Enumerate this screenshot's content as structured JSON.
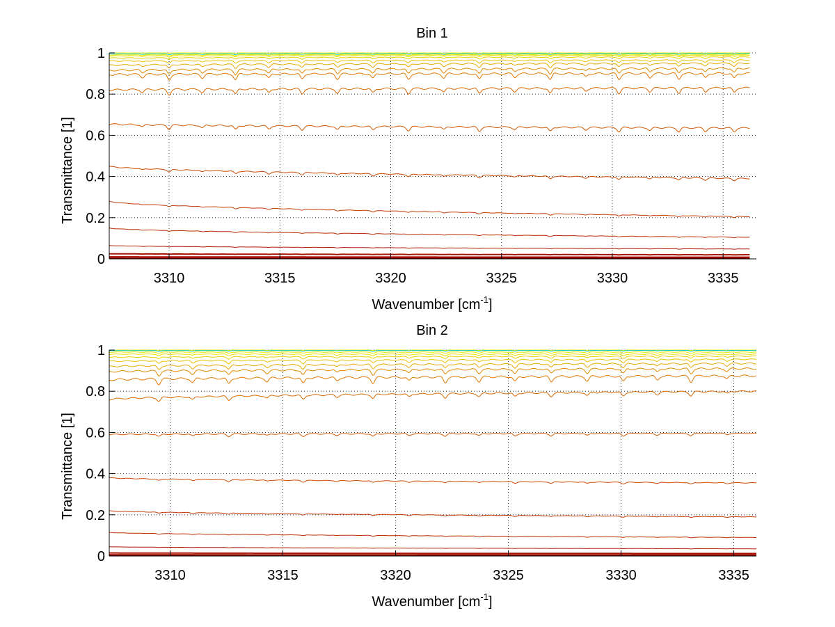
{
  "chart_data": [
    {
      "type": "line",
      "title": "Bin 1",
      "xlabel": "Wavenumber [cm",
      "xlabel_sup": "-1",
      "xlabel_end": "]",
      "ylabel": "Transmittance [1]",
      "xlim": [
        3307.3,
        3336.5
      ],
      "ylim": [
        0,
        1
      ],
      "data_xmax": 3336.2,
      "xticks": [
        3310,
        3315,
        3320,
        3325,
        3330,
        3335
      ],
      "xtick_labels": [
        "3310",
        "3315",
        "3320",
        "3325",
        "3330",
        "3335"
      ],
      "yticks": [
        0,
        0.2,
        0.4,
        0.6,
        0.8,
        1
      ],
      "ytick_labels": [
        "0",
        "0.2",
        "0.4",
        "0.6",
        "0.8",
        "1"
      ],
      "grid": true,
      "line_absorption": [
        3308.8,
        3310.0,
        3311.5,
        3313.0,
        3314.5,
        3316.0,
        3317.6,
        3319.2,
        3320.8,
        3322.4,
        3324.0,
        3325.6,
        3327.2,
        3328.8,
        3330.3,
        3331.7,
        3333.0,
        3334.2,
        3335.5
      ],
      "series": [
        {
          "name": "curve-1",
          "start": 1.0,
          "end": 1.0,
          "color": "#e8e800",
          "dip": 0.002
        },
        {
          "name": "curve-2",
          "start": 0.995,
          "end": 0.997,
          "color": "#00c8c8",
          "dip": 0.004
        },
        {
          "name": "curve-3",
          "start": 0.99,
          "end": 0.993,
          "color": "#e8e800",
          "dip": 0.005
        },
        {
          "name": "curve-4",
          "start": 0.985,
          "end": 0.988,
          "color": "#e8e000",
          "dip": 0.006
        },
        {
          "name": "curve-5",
          "start": 0.975,
          "end": 0.98,
          "color": "#e8d000",
          "dip": 0.008
        },
        {
          "name": "curve-6",
          "start": 0.96,
          "end": 0.965,
          "color": "#e8c000",
          "dip": 0.012
        },
        {
          "name": "curve-7",
          "start": 0.94,
          "end": 0.95,
          "color": "#e8a800",
          "dip": 0.018
        },
        {
          "name": "curve-8",
          "start": 0.915,
          "end": 0.925,
          "color": "#e08800",
          "dip": 0.024
        },
        {
          "name": "curve-9",
          "start": 0.895,
          "end": 0.9,
          "color": "#e07800",
          "dip": 0.028
        },
        {
          "name": "curve-10",
          "start": 0.82,
          "end": 0.83,
          "color": "#d86800",
          "dip": 0.025
        },
        {
          "name": "curve-11",
          "start": 0.655,
          "end": 0.635,
          "color": "#d05800",
          "dip": 0.02
        },
        {
          "name": "curve-12",
          "start": 0.45,
          "end": 0.39,
          "color": "#c84800",
          "dip": 0.012
        },
        {
          "name": "curve-13",
          "start": 0.28,
          "end": 0.205,
          "color": "#c03800",
          "dip": 0.006
        },
        {
          "name": "curve-14",
          "start": 0.15,
          "end": 0.105,
          "color": "#b82800",
          "dip": 0.004
        },
        {
          "name": "curve-15",
          "start": 0.065,
          "end": 0.048,
          "color": "#b01800",
          "dip": 0.002
        },
        {
          "name": "curve-16",
          "start": 0.025,
          "end": 0.02,
          "color": "#a81000",
          "dip": 0.001
        },
        {
          "name": "curve-17",
          "start": 0.01,
          "end": 0.008,
          "color": "#a00800",
          "dip": 0.0
        },
        {
          "name": "curve-18",
          "start": 0.003,
          "end": 0.002,
          "color": "#980000",
          "dip": 0.0
        }
      ]
    },
    {
      "type": "line",
      "title": "Bin 2",
      "xlabel": "Wavenumber [cm",
      "xlabel_sup": "-1",
      "xlabel_end": "]",
      "ylabel": "Transmittance [1]",
      "xlim": [
        3307.3,
        3336.0
      ],
      "ylim": [
        0,
        1
      ],
      "data_xmax": 3336.0,
      "xticks": [
        3310,
        3315,
        3320,
        3325,
        3330,
        3335
      ],
      "xtick_labels": [
        "3310",
        "3315",
        "3320",
        "3325",
        "3330",
        "3335"
      ],
      "yticks": [
        0,
        0.2,
        0.4,
        0.6,
        0.8,
        1
      ],
      "ytick_labels": [
        "0",
        "0.2",
        "0.4",
        "0.6",
        "0.8",
        "1"
      ],
      "grid": true,
      "line_absorption": [
        3309.5,
        3311.0,
        3312.6,
        3314.3,
        3315.9,
        3317.4,
        3319.0,
        3320.6,
        3322.2,
        3323.7,
        3325.3,
        3326.9,
        3328.5,
        3330.1,
        3331.6,
        3333.1,
        3334.7
      ],
      "series": [
        {
          "name": "curve-1",
          "start": 1.0,
          "end": 1.0,
          "color": "#e8e800",
          "dip": 0.002
        },
        {
          "name": "curve-2",
          "start": 0.997,
          "end": 0.998,
          "color": "#00c8c8",
          "dip": 0.003
        },
        {
          "name": "curve-3",
          "start": 0.99,
          "end": 0.99,
          "color": "#e8e800",
          "dip": 0.006
        },
        {
          "name": "curve-4",
          "start": 0.98,
          "end": 0.98,
          "color": "#e8e000",
          "dip": 0.008
        },
        {
          "name": "curve-5",
          "start": 0.965,
          "end": 0.97,
          "color": "#e8d000",
          "dip": 0.01
        },
        {
          "name": "curve-6",
          "start": 0.945,
          "end": 0.955,
          "color": "#e8c000",
          "dip": 0.015
        },
        {
          "name": "curve-7",
          "start": 0.92,
          "end": 0.935,
          "color": "#e8a800",
          "dip": 0.02
        },
        {
          "name": "curve-8",
          "start": 0.895,
          "end": 0.91,
          "color": "#e08800",
          "dip": 0.024
        },
        {
          "name": "curve-9",
          "start": 0.855,
          "end": 0.875,
          "color": "#e07800",
          "dip": 0.028
        },
        {
          "name": "curve-10",
          "start": 0.76,
          "end": 0.8,
          "color": "#d86800",
          "dip": 0.02
        },
        {
          "name": "curve-11",
          "start": 0.59,
          "end": 0.595,
          "color": "#d05800",
          "dip": 0.012
        },
        {
          "name": "curve-12",
          "start": 0.38,
          "end": 0.355,
          "color": "#c84800",
          "dip": 0.008
        },
        {
          "name": "curve-13",
          "start": 0.22,
          "end": 0.19,
          "color": "#c03800",
          "dip": 0.005
        },
        {
          "name": "curve-14",
          "start": 0.115,
          "end": 0.09,
          "color": "#b82800",
          "dip": 0.003
        },
        {
          "name": "curve-15",
          "start": 0.045,
          "end": 0.035,
          "color": "#b01800",
          "dip": 0.001
        },
        {
          "name": "curve-16",
          "start": 0.015,
          "end": 0.012,
          "color": "#a81000",
          "dip": 0.0
        },
        {
          "name": "curve-17",
          "start": 0.006,
          "end": 0.005,
          "color": "#a00800",
          "dip": 0.0
        },
        {
          "name": "curve-18",
          "start": 0.002,
          "end": 0.002,
          "color": "#980000",
          "dip": 0.0
        }
      ]
    }
  ]
}
